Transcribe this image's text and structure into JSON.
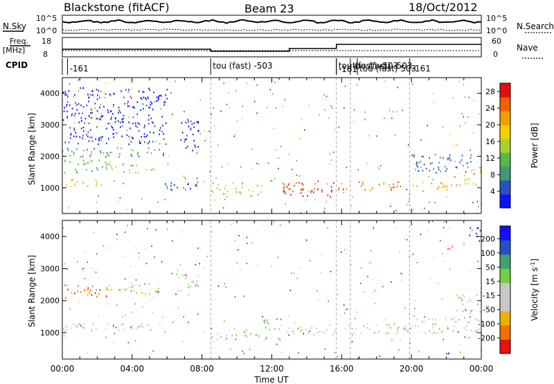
{
  "header": {
    "station": "Blackstone (fitACF)",
    "beam": "Beam 23",
    "date": "18/Oct/2012"
  },
  "summary": {
    "nsky_label": "N.Sky",
    "nsearch_label": "N.Search",
    "freq_label": "Freq.",
    "freq_unit": "[MHz]",
    "nave_label": "Nave",
    "cpid_label": "CPID",
    "noise_ticks": [
      "10^5",
      "10^0"
    ],
    "freq_ticks": [
      "18",
      "8"
    ],
    "nave_ticks": [
      "60",
      "0"
    ],
    "cpid_annotations": [
      {
        "t": 0.3,
        "text": "-161"
      },
      {
        "t": 8.5,
        "text": "tou (fast) -503"
      },
      {
        "t": 15.7,
        "text": "tou (fast) -503"
      },
      {
        "t": 15.7,
        "text": "-161"
      },
      {
        "t": 16.5,
        "text": "tou (fast) -503"
      },
      {
        "t": 16.9,
        "text": "tou (fast) 503"
      },
      {
        "t": 19.9,
        "text": "-161"
      }
    ]
  },
  "colors": {
    "power_scale": [
      "#1010ff",
      "#2850c0",
      "#3c9a7a",
      "#58b848",
      "#a8d030",
      "#f0d000",
      "#f0a000",
      "#f06000",
      "#e01010"
    ],
    "velocity_scale": [
      "#1010ff",
      "#2850c0",
      "#40a070",
      "#70d040",
      "#c8c8c8",
      "#c8c8c8",
      "#f0b000",
      "#f07000",
      "#e81010"
    ]
  },
  "chart_data": [
    {
      "type": "heatmap",
      "name": "Power",
      "xlabel": "",
      "ylabel": "Slant Range [km]",
      "xlim": [
        0,
        24
      ],
      "ylim": [
        180,
        4500
      ],
      "x_ticks": [
        "00:00",
        "04:00",
        "08:00",
        "12:00",
        "16:00",
        "20:00",
        "00:00"
      ],
      "y_ticks": [
        1000,
        2000,
        3000,
        4000
      ],
      "colorbar": {
        "label": "Power [dB]",
        "ticks": [
          4,
          8,
          12,
          16,
          20,
          24,
          28
        ],
        "range": [
          0,
          30
        ]
      },
      "bands": [
        {
          "x0": 0,
          "x1": 2.5,
          "y0": 1050,
          "y1": 1300,
          "level": 5
        },
        {
          "x0": 0,
          "x1": 2.5,
          "y0": 1500,
          "y1": 1900,
          "level": 3
        },
        {
          "x0": 0,
          "x1": 6,
          "y0": 2000,
          "y1": 2300,
          "level": 2
        },
        {
          "x0": 2.5,
          "x1": 5.5,
          "y0": 1500,
          "y1": 1800,
          "level": 4
        },
        {
          "x0": 5.5,
          "x1": 8,
          "y0": 900,
          "y1": 1200,
          "level": 1
        },
        {
          "x0": 6.5,
          "x1": 7.8,
          "y0": 2200,
          "y1": 3200,
          "level": 0
        },
        {
          "x0": 8.5,
          "x1": 11.5,
          "y0": 800,
          "y1": 1200,
          "level": 4
        },
        {
          "x0": 12.5,
          "x1": 19.5,
          "y0": 950,
          "y1": 1250,
          "level": 7
        },
        {
          "x0": 12.5,
          "x1": 15.5,
          "y0": 700,
          "y1": 950,
          "level": 8
        },
        {
          "x0": 20,
          "x1": 23,
          "y0": 950,
          "y1": 1200,
          "level": 6
        },
        {
          "x0": 20,
          "x1": 23.5,
          "y0": 1500,
          "y1": 2100,
          "level": 1
        },
        {
          "x0": 23,
          "x1": 24,
          "y0": 1100,
          "y1": 1700,
          "level": 5
        },
        {
          "x0": 0,
          "x1": 6,
          "y0": 2400,
          "y1": 4200,
          "level": 0
        }
      ]
    },
    {
      "type": "heatmap",
      "name": "Velocity",
      "xlabel": "Time UT",
      "ylabel": "Slant Range [km]",
      "xlim": [
        0,
        24
      ],
      "ylim": [
        180,
        4500
      ],
      "x_ticks": [
        "00:00",
        "04:00",
        "08:00",
        "12:00",
        "16:00",
        "20:00",
        "00:00"
      ],
      "y_ticks": [
        1000,
        2000,
        3000,
        4000
      ],
      "colorbar": {
        "label": "Velocity [m s^-1]",
        "ticks": [
          200,
          100,
          50,
          15,
          -15,
          -50,
          -100,
          -200
        ]
      },
      "bands": [
        {
          "x0": 0,
          "x1": 6,
          "y0": 1050,
          "y1": 1300,
          "level": 4
        },
        {
          "x0": 0,
          "x1": 2.5,
          "y0": 2100,
          "y1": 2500,
          "level": 7
        },
        {
          "x0": 2.5,
          "x1": 5.5,
          "y0": 2200,
          "y1": 2600,
          "level": 6
        },
        {
          "x0": 6.5,
          "x1": 7.8,
          "y0": 2200,
          "y1": 3000,
          "level": 4
        },
        {
          "x0": 8.5,
          "x1": 11.5,
          "y0": 800,
          "y1": 1000,
          "level": 3
        },
        {
          "x0": 11.5,
          "x1": 12.5,
          "y0": 800,
          "y1": 1500,
          "level": 3
        },
        {
          "x0": 12.5,
          "x1": 20,
          "y0": 950,
          "y1": 1300,
          "level": 4
        },
        {
          "x0": 20,
          "x1": 24,
          "y0": 1000,
          "y1": 1500,
          "level": 4
        },
        {
          "x0": 22.5,
          "x1": 24,
          "y0": 1600,
          "y1": 2300,
          "level": 4
        },
        {
          "x0": 23.3,
          "x1": 24,
          "y0": 3800,
          "y1": 4300,
          "level": 0
        }
      ]
    }
  ]
}
